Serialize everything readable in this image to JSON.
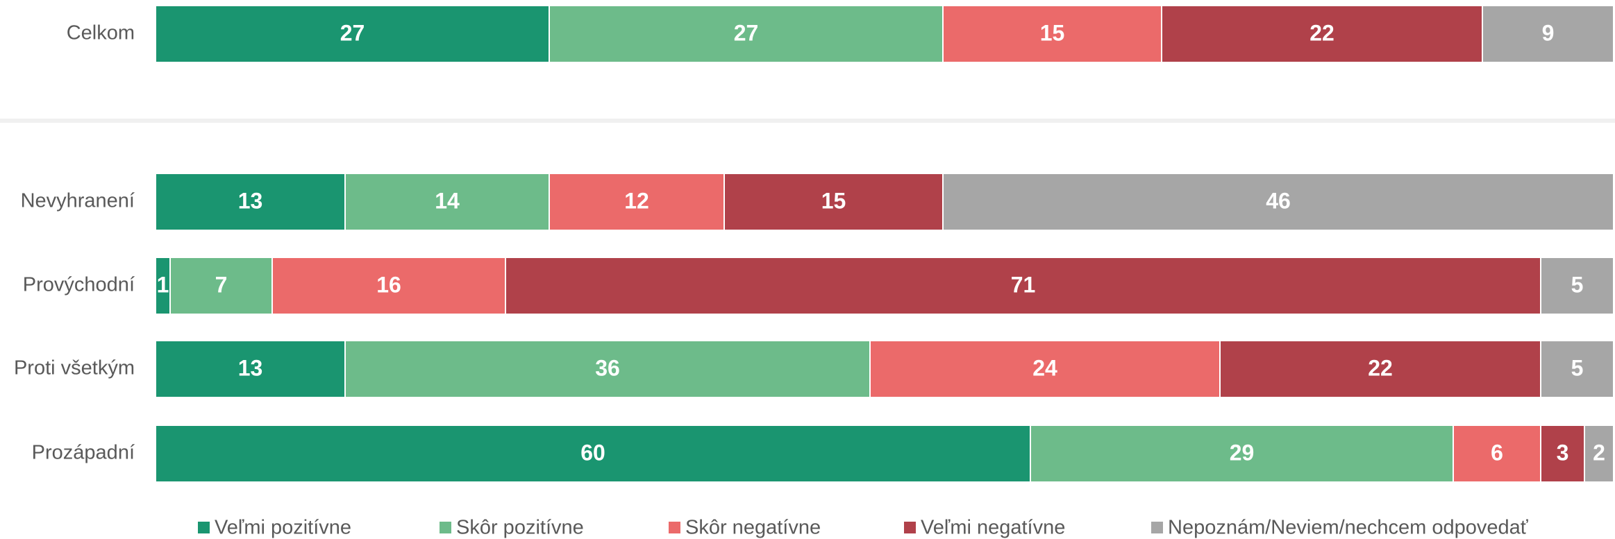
{
  "chart_data": {
    "type": "stacked_bar_horizontal",
    "categories": [
      "Celkom",
      "Nevyhranení",
      "Provýchodní",
      "Proti všetkým",
      "Prozápadní"
    ],
    "series": [
      {
        "name": "Veľmi pozitívne",
        "color": "#1a9570",
        "values": [
          27,
          13,
          1,
          13,
          60
        ]
      },
      {
        "name": "Skôr pozitívne",
        "color": "#6dbb8a",
        "values": [
          27,
          14,
          7,
          36,
          29
        ]
      },
      {
        "name": "Skôr negatívne",
        "color": "#eb6a6a",
        "values": [
          15,
          12,
          16,
          24,
          6
        ]
      },
      {
        "name": "Veľmi negatívne",
        "color": "#b0414a",
        "values": [
          22,
          15,
          71,
          22,
          3
        ]
      },
      {
        "name": "Nepoznám/Neviem/nechcem odpovedať",
        "color": "#a6a6a6",
        "values": [
          9,
          46,
          5,
          5,
          2
        ]
      }
    ],
    "legend": "bottom"
  }
}
